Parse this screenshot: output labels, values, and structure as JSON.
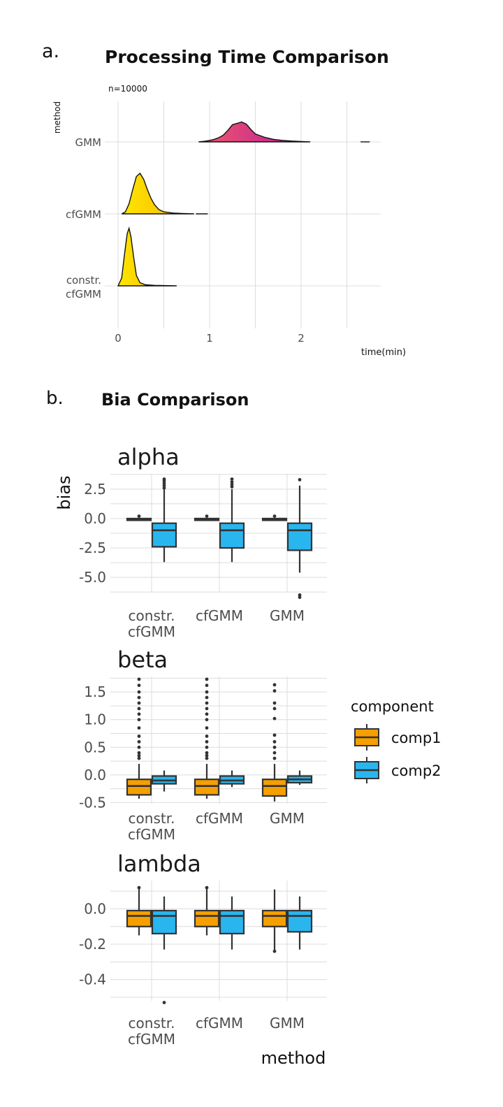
{
  "panel_a_label": "a.",
  "panel_b_label": "b.",
  "colors": {
    "comp1": "#f5a000",
    "comp2": "#29b6ef",
    "ridge_gmm_start": "#f25a6a",
    "ridge_gmm_end": "#b5179e",
    "ridge_yellow_start": "#ffe600",
    "ridge_yellow_end": "#f5b300"
  },
  "chart_data": [
    {
      "type": "ridgeline",
      "title": "Processing Time Comparison",
      "subtitle": "n=10000",
      "xlabel": "time(min)",
      "ylabel": "method",
      "xlim": [
        -0.05,
        2.9
      ],
      "xticks": [
        0,
        1,
        2
      ],
      "categories": [
        "constr.\ncfGMM",
        "cfGMM",
        "GMM"
      ],
      "series": [
        {
          "category": "GMM",
          "x": [
            0.88,
            0.95,
            1.0,
            1.05,
            1.1,
            1.15,
            1.2,
            1.25,
            1.3,
            1.35,
            1.4,
            1.45,
            1.5,
            1.55,
            1.6,
            1.7,
            1.8,
            1.9,
            2.0,
            2.1
          ],
          "density": [
            0.0,
            0.03,
            0.07,
            0.12,
            0.2,
            0.32,
            0.55,
            0.82,
            0.88,
            0.95,
            0.85,
            0.6,
            0.38,
            0.3,
            0.22,
            0.12,
            0.07,
            0.04,
            0.02,
            0.0
          ],
          "outliers": [
            2.65,
            2.75
          ]
        },
        {
          "category": "cfGMM",
          "x": [
            0.04,
            0.08,
            0.12,
            0.16,
            0.2,
            0.24,
            0.28,
            0.32,
            0.36,
            0.4,
            0.45,
            0.5,
            0.6,
            0.7,
            0.83
          ],
          "density": [
            0.0,
            0.05,
            0.25,
            0.6,
            0.92,
            1.0,
            0.85,
            0.6,
            0.38,
            0.22,
            0.1,
            0.05,
            0.02,
            0.01,
            0.0
          ],
          "outliers": [
            0.85,
            0.98
          ]
        },
        {
          "category": "constr.\ncfGMM",
          "x": [
            0.0,
            0.04,
            0.07,
            0.1,
            0.12,
            0.14,
            0.17,
            0.2,
            0.24,
            0.3,
            0.4,
            0.5,
            0.64
          ],
          "density": [
            0.0,
            0.15,
            0.6,
            1.0,
            1.1,
            0.95,
            0.55,
            0.2,
            0.06,
            0.02,
            0.01,
            0.005,
            0.0
          ],
          "outliers": []
        }
      ]
    },
    {
      "type": "boxplot",
      "title": "Bia Comparison",
      "xlabel": "method",
      "ylabel": "bias",
      "categories": [
        "constr.\ncfGMM",
        "cfGMM",
        "GMM"
      ],
      "legend": {
        "title": "component",
        "entries": [
          "comp1",
          "comp2"
        ]
      },
      "facets": [
        {
          "name": "alpha",
          "ylim": [
            -6.3,
            3.8
          ],
          "yticks": [
            2.5,
            0.0,
            -2.5,
            -5.0
          ],
          "ytick_labels": [
            "2.5",
            "0.0",
            "-2.5",
            "-5.0"
          ],
          "boxes": [
            {
              "method": "constr.\ncfGMM",
              "component": "comp1",
              "q1": -0.15,
              "median": -0.05,
              "q3": 0.0,
              "low": -0.2,
              "high": 0.05,
              "outliers": [
                0.2
              ]
            },
            {
              "method": "constr.\ncfGMM",
              "component": "comp2",
              "q1": -2.4,
              "median": -1.0,
              "q3": -0.4,
              "low": -3.7,
              "high": 2.5,
              "outliers": [
                2.6,
                2.8,
                3.0,
                3.2,
                3.35
              ]
            },
            {
              "method": "cfGMM",
              "component": "comp1",
              "q1": -0.15,
              "median": -0.05,
              "q3": 0.0,
              "low": -0.2,
              "high": 0.05,
              "outliers": [
                0.2
              ]
            },
            {
              "method": "cfGMM",
              "component": "comp2",
              "q1": -2.5,
              "median": -1.0,
              "q3": -0.4,
              "low": -3.7,
              "high": 2.5,
              "outliers": [
                2.7,
                2.9,
                3.1,
                3.35
              ]
            },
            {
              "method": "GMM",
              "component": "comp1",
              "q1": -0.15,
              "median": -0.05,
              "q3": 0.0,
              "low": -0.2,
              "high": 0.05,
              "outliers": [
                0.2
              ]
            },
            {
              "method": "GMM",
              "component": "comp2",
              "q1": -2.7,
              "median": -1.0,
              "q3": -0.4,
              "low": -4.6,
              "high": 2.8,
              "outliers": [
                3.3,
                -6.5,
                -6.7
              ]
            }
          ]
        },
        {
          "name": "beta",
          "ylim": [
            -0.52,
            1.78
          ],
          "yticks": [
            1.5,
            1.0,
            0.5,
            0.0,
            -0.5
          ],
          "ytick_labels": [
            "1.5",
            "1.0",
            "0.5",
            "0.0",
            "-0.5"
          ],
          "boxes": [
            {
              "method": "constr.\ncfGMM",
              "component": "comp1",
              "q1": -0.36,
              "median": -0.2,
              "q3": -0.08,
              "low": -0.43,
              "high": 0.2,
              "outliers": [
                0.3,
                0.35,
                0.4,
                0.5,
                0.6,
                0.7,
                0.85,
                1.0,
                1.1,
                1.2,
                1.3,
                1.4,
                1.5,
                1.62,
                1.73
              ]
            },
            {
              "method": "constr.\ncfGMM",
              "component": "comp2",
              "q1": -0.16,
              "median": -0.1,
              "q3": -0.02,
              "low": -0.3,
              "high": 0.08,
              "outliers": []
            },
            {
              "method": "cfGMM",
              "component": "comp1",
              "q1": -0.36,
              "median": -0.2,
              "q3": -0.08,
              "low": -0.43,
              "high": 0.2,
              "outliers": [
                0.3,
                0.35,
                0.4,
                0.5,
                0.6,
                0.7,
                0.85,
                1.0,
                1.1,
                1.2,
                1.3,
                1.4,
                1.5,
                1.62,
                1.73
              ]
            },
            {
              "method": "cfGMM",
              "component": "comp2",
              "q1": -0.16,
              "median": -0.1,
              "q3": -0.02,
              "low": -0.22,
              "high": 0.08,
              "outliers": []
            },
            {
              "method": "GMM",
              "component": "comp1",
              "q1": -0.38,
              "median": -0.2,
              "q3": -0.08,
              "low": -0.48,
              "high": 0.2,
              "outliers": [
                0.3,
                0.4,
                0.5,
                0.6,
                0.72,
                1.02,
                1.2,
                1.3,
                1.52,
                1.63
              ]
            },
            {
              "method": "GMM",
              "component": "comp2",
              "q1": -0.14,
              "median": -0.08,
              "q3": -0.02,
              "low": -0.18,
              "high": 0.08,
              "outliers": []
            }
          ]
        },
        {
          "name": "lambda",
          "ylim": [
            -0.52,
            0.16
          ],
          "yticks": [
            0.0,
            -0.2,
            -0.4
          ],
          "ytick_labels": [
            "0.0",
            "-0.2",
            "-0.4"
          ],
          "boxes": [
            {
              "method": "constr.\ncfGMM",
              "component": "comp1",
              "q1": -0.1,
              "median": -0.04,
              "q3": -0.01,
              "low": -0.15,
              "high": 0.12,
              "outliers": [
                0.12
              ]
            },
            {
              "method": "constr.\ncfGMM",
              "component": "comp2",
              "q1": -0.14,
              "median": -0.04,
              "q3": -0.01,
              "low": -0.23,
              "high": 0.07,
              "outliers": [
                -0.53
              ]
            },
            {
              "method": "cfGMM",
              "component": "comp1",
              "q1": -0.1,
              "median": -0.04,
              "q3": -0.01,
              "low": -0.15,
              "high": 0.12,
              "outliers": [
                0.12
              ]
            },
            {
              "method": "cfGMM",
              "component": "comp2",
              "q1": -0.14,
              "median": -0.04,
              "q3": -0.01,
              "low": -0.23,
              "high": 0.07,
              "outliers": []
            },
            {
              "method": "GMM",
              "component": "comp1",
              "q1": -0.1,
              "median": -0.04,
              "q3": -0.01,
              "low": -0.24,
              "high": 0.11,
              "outliers": [
                -0.24
              ]
            },
            {
              "method": "GMM",
              "component": "comp2",
              "q1": -0.13,
              "median": -0.04,
              "q3": -0.01,
              "low": -0.23,
              "high": 0.07,
              "outliers": []
            }
          ]
        }
      ]
    }
  ]
}
